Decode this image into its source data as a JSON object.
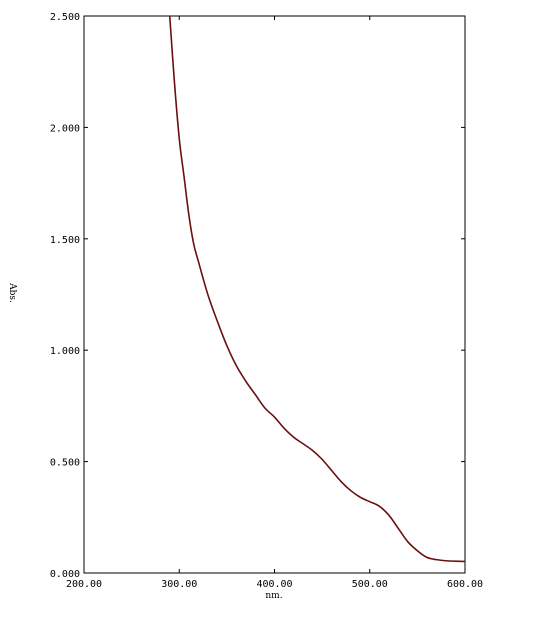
{
  "chart_data": {
    "type": "line",
    "xlabel": "nm.",
    "ylabel": "Abs.",
    "xlim": [
      200,
      600
    ],
    "ylim": [
      0,
      2.5
    ],
    "x_ticks": [
      200,
      300,
      400,
      500,
      600
    ],
    "x_tick_labels": [
      "200.00",
      "300.00",
      "400.00",
      "500.00",
      "600.00"
    ],
    "y_ticks": [
      0,
      0.5,
      1.0,
      1.5,
      2.0,
      2.5
    ],
    "y_tick_labels": [
      "0.000",
      "0.500",
      "1.000",
      "1.500",
      "2.000",
      "2.500"
    ],
    "grid": false,
    "series": [
      {
        "color": "#6b0f0f",
        "x": [
          290,
          295,
          300,
          305,
          310,
          315,
          320,
          330,
          340,
          350,
          360,
          370,
          380,
          390,
          400,
          410,
          420,
          430,
          440,
          450,
          460,
          470,
          480,
          490,
          500,
          510,
          520,
          530,
          540,
          550,
          560,
          570,
          580,
          590,
          600
        ],
        "y": [
          2.5,
          2.2,
          1.95,
          1.78,
          1.61,
          1.48,
          1.4,
          1.25,
          1.13,
          1.02,
          0.93,
          0.86,
          0.8,
          0.74,
          0.7,
          0.65,
          0.61,
          0.58,
          0.55,
          0.51,
          0.46,
          0.41,
          0.37,
          0.34,
          0.32,
          0.3,
          0.26,
          0.2,
          0.14,
          0.1,
          0.07,
          0.06,
          0.055,
          0.053,
          0.052
        ]
      }
    ]
  }
}
